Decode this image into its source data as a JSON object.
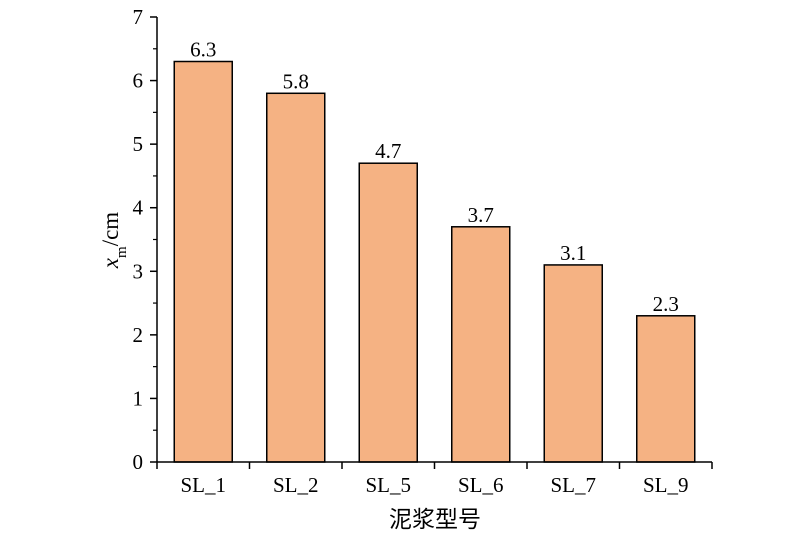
{
  "chart_data": {
    "type": "bar",
    "categories": [
      "SL_1",
      "SL_2",
      "SL_5",
      "SL_6",
      "SL_7",
      "SL_9"
    ],
    "values": [
      6.3,
      5.8,
      4.7,
      3.7,
      3.1,
      2.3
    ],
    "data_labels": [
      "6.3",
      "5.8",
      "4.7",
      "3.7",
      "3.1",
      "2.3"
    ],
    "xlabel": "泥浆型号",
    "ylabel": {
      "base": "x",
      "subscript": "m",
      "suffix": "/cm"
    },
    "ylim": [
      0,
      7
    ],
    "yticks": [
      "0",
      "1",
      "2",
      "3",
      "4",
      "5",
      "6",
      "7"
    ],
    "bar_color": "#f5b283",
    "grid": false,
    "legend": "none"
  }
}
